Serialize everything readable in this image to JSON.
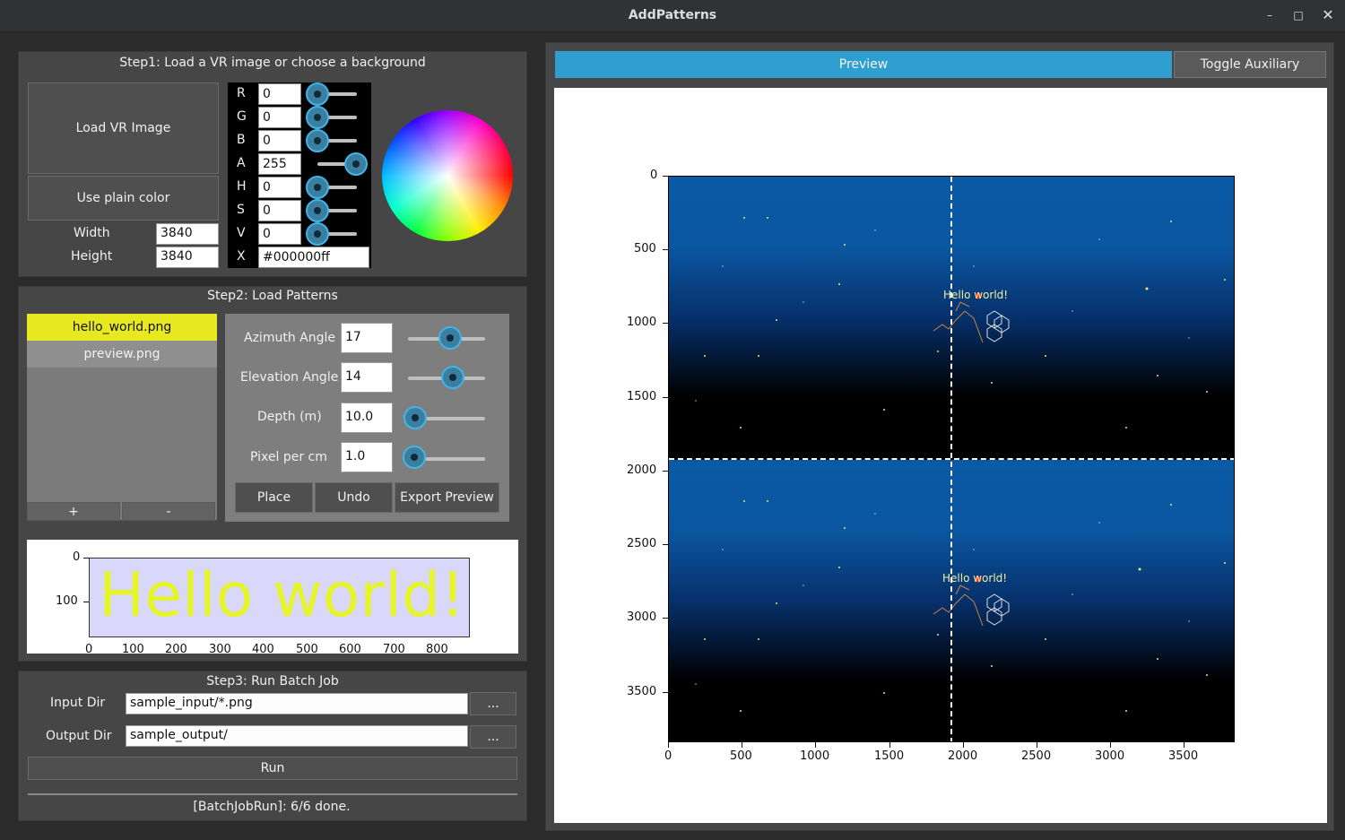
{
  "window": {
    "title": "AddPatterns",
    "controls": {
      "minimize": "–",
      "maximize": "□",
      "close": "✕"
    }
  },
  "step1": {
    "title": "Step1: Load a VR image or choose a background",
    "load_button": "Load VR Image",
    "plain_button": "Use plain color",
    "width_label": "Width",
    "width_value": "3840",
    "height_label": "Height",
    "height_value": "3840",
    "color": {
      "channels": [
        {
          "label": "R",
          "value": "0",
          "level": 0
        },
        {
          "label": "G",
          "value": "0",
          "level": 0
        },
        {
          "label": "B",
          "value": "0",
          "level": 0
        },
        {
          "label": "A",
          "value": "255",
          "level": 1
        },
        {
          "label": "H",
          "value": "0",
          "level": 0
        },
        {
          "label": "S",
          "value": "0",
          "level": 0
        },
        {
          "label": "V",
          "value": "0",
          "level": 0
        }
      ],
      "hex_label": "X",
      "hex_value": "#000000ff"
    }
  },
  "step2": {
    "title": "Step2: Load Patterns",
    "patterns": [
      "hello_world.png",
      "preview.png"
    ],
    "selected_pattern": "hello_world.png",
    "add_button": "+",
    "remove_button": "-",
    "params": [
      {
        "label": "Azimuth Angle",
        "value": "17",
        "level": 0.52
      },
      {
        "label": "Elevation Angle",
        "value": "14",
        "level": 0.57
      },
      {
        "label": "Depth (m)",
        "value": "10.0",
        "level": 0
      },
      {
        "label": "Pixel per cm",
        "value": "1.0",
        "level": 0
      }
    ],
    "place_button": "Place",
    "undo_button": "Undo",
    "export_button": "Export Preview",
    "thumbnail": {
      "text": "Hello world!",
      "x_ticks": [
        "0",
        "100",
        "200",
        "300",
        "400",
        "500",
        "600",
        "700",
        "800"
      ],
      "y_ticks": [
        "0",
        "100"
      ]
    }
  },
  "step3": {
    "title": "Step3: Run Batch Job",
    "input_label": "Input Dir",
    "input_value": "sample_input/*.png",
    "output_label": "Output Dir",
    "output_value": "sample_output/",
    "browse_label": "...",
    "run_button": "Run",
    "status": "[BatchJobRun]: 6/6 done."
  },
  "preview": {
    "tab_preview": "Preview",
    "tab_auxiliary": "Toggle Auxiliary",
    "overlay_text": "Hello world!",
    "x_ticks": [
      "0",
      "500",
      "1000",
      "1500",
      "2000",
      "2500",
      "3000",
      "3500"
    ],
    "y_ticks": [
      "0",
      "500",
      "1000",
      "1500",
      "2000",
      "2500",
      "3000",
      "3500"
    ],
    "accent_color": "#2e9fce",
    "highlight_color": "#e8e820"
  }
}
